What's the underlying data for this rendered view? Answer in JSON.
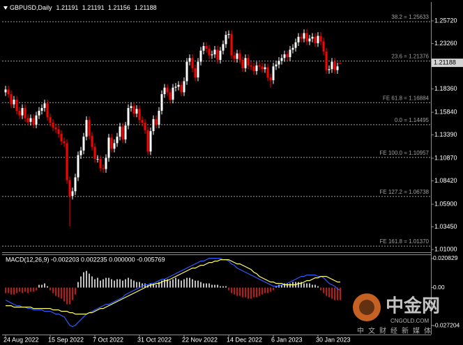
{
  "chart_data": [
    {
      "type": "candlestick",
      "title": "GBPUSD,Daily",
      "categories": [
        "24 Aug 2022",
        null,
        null,
        null,
        null,
        null,
        null,
        null,
        null,
        null,
        null,
        null,
        null,
        null,
        null,
        null,
        "15 Sep 2022",
        null,
        null,
        null,
        null,
        null,
        null,
        null,
        null,
        null,
        null,
        null,
        null,
        null,
        null,
        null,
        "7 Oct 2022",
        null,
        null,
        null,
        null,
        null,
        null,
        null,
        null,
        null,
        null,
        null,
        null,
        null,
        null,
        null,
        "31 Oct 2022",
        null,
        null,
        null,
        null,
        null,
        null,
        null,
        null,
        null,
        null,
        null,
        null,
        null,
        null,
        null,
        "22 Nov 2022",
        null,
        null,
        null,
        null,
        null,
        null,
        null,
        null,
        null,
        null,
        null,
        null,
        null,
        null,
        null,
        "14 Dec 2022",
        null,
        null,
        null,
        null,
        null,
        null,
        null,
        null,
        null,
        null,
        null,
        null,
        null,
        null,
        null,
        "6 Jan 2023",
        null,
        null,
        null,
        null,
        null,
        null,
        null,
        null,
        null,
        null,
        null,
        null,
        null,
        null,
        null,
        "30 Jan 2023",
        null,
        null,
        null,
        null,
        null,
        null,
        null,
        null
      ],
      "open": [
        1.18,
        1.183,
        1.178,
        1.167,
        1.172,
        1.16,
        1.155,
        1.163,
        1.152,
        1.148,
        1.152,
        1.145,
        1.155,
        1.16,
        1.163,
        1.168,
        1.153,
        1.147,
        1.142,
        1.14,
        1.135,
        1.127,
        1.125,
        1.085,
        1.068,
        1.073,
        1.088,
        1.112,
        1.117,
        1.132,
        1.15,
        1.133,
        1.121,
        1.108,
        1.108,
        1.098,
        1.097,
        1.109,
        1.131,
        1.119,
        1.125,
        1.132,
        1.143,
        1.129,
        1.144,
        1.163,
        1.165,
        1.157,
        1.162,
        1.15,
        1.147,
        1.139,
        1.116,
        1.138,
        1.151,
        1.145,
        1.16,
        1.178,
        1.185,
        1.18,
        1.172,
        1.185,
        1.186,
        1.188,
        1.18,
        1.192,
        1.213,
        1.217,
        1.206,
        1.196,
        1.213,
        1.225,
        1.23,
        1.227,
        1.22,
        1.221,
        1.226,
        1.215,
        1.225,
        1.232,
        1.242,
        1.243,
        1.22,
        1.216,
        1.222,
        1.215,
        1.206,
        1.217,
        1.209,
        1.208,
        1.203,
        1.209,
        1.208,
        1.205,
        1.207,
        1.196,
        1.193,
        1.208,
        1.21,
        1.214,
        1.217,
        1.221,
        1.218,
        1.226,
        1.228,
        1.234,
        1.24,
        1.238,
        1.244,
        1.235,
        1.238,
        1.24,
        1.233,
        1.241,
        1.235,
        1.224,
        1.204,
        1.205,
        1.213,
        1.204,
        1.21191
      ],
      "high": [
        1.187,
        1.187,
        1.182,
        1.176,
        1.176,
        1.164,
        1.167,
        1.167,
        1.156,
        1.156,
        1.156,
        1.159,
        1.164,
        1.167,
        1.172,
        1.172,
        1.157,
        1.151,
        1.146,
        1.144,
        1.139,
        1.131,
        1.129,
        1.089,
        1.077,
        1.092,
        1.116,
        1.121,
        1.136,
        1.154,
        1.154,
        1.137,
        1.125,
        1.112,
        1.112,
        1.102,
        1.113,
        1.135,
        1.135,
        1.129,
        1.136,
        1.147,
        1.147,
        1.148,
        1.167,
        1.169,
        1.169,
        1.166,
        1.166,
        1.154,
        1.151,
        1.143,
        1.142,
        1.155,
        1.155,
        1.164,
        1.182,
        1.189,
        1.189,
        1.184,
        1.189,
        1.19,
        1.192,
        1.192,
        1.196,
        1.217,
        1.221,
        1.221,
        1.21,
        1.217,
        1.229,
        1.234,
        1.234,
        1.231,
        1.225,
        1.23,
        1.23,
        1.229,
        1.236,
        1.246,
        1.247,
        1.247,
        1.224,
        1.226,
        1.226,
        1.219,
        1.221,
        1.221,
        1.213,
        1.212,
        1.213,
        1.213,
        1.212,
        1.211,
        1.211,
        1.2,
        1.212,
        1.214,
        1.218,
        1.221,
        1.225,
        1.225,
        1.23,
        1.232,
        1.238,
        1.244,
        1.244,
        1.248,
        1.248,
        1.242,
        1.244,
        1.244,
        1.245,
        1.245,
        1.239,
        1.228,
        1.209,
        1.217,
        1.217,
        1.212,
        1.21191
      ],
      "low": [
        1.176,
        1.174,
        1.163,
        1.163,
        1.156,
        1.151,
        1.151,
        1.148,
        1.144,
        1.144,
        1.141,
        1.141,
        1.151,
        1.156,
        1.159,
        1.149,
        1.143,
        1.138,
        1.136,
        1.131,
        1.123,
        1.121,
        1.081,
        1.035,
        1.064,
        1.069,
        1.084,
        1.108,
        1.113,
        1.128,
        1.129,
        1.117,
        1.104,
        1.104,
        1.094,
        1.093,
        1.093,
        1.105,
        1.115,
        1.115,
        1.121,
        1.128,
        1.125,
        1.125,
        1.14,
        1.159,
        1.153,
        1.153,
        1.146,
        1.143,
        1.135,
        1.112,
        1.112,
        1.134,
        1.141,
        1.141,
        1.156,
        1.174,
        1.176,
        1.168,
        1.168,
        1.181,
        1.182,
        1.176,
        1.176,
        1.188,
        1.209,
        1.202,
        1.192,
        1.192,
        1.209,
        1.221,
        1.223,
        1.216,
        1.216,
        1.217,
        1.211,
        1.211,
        1.221,
        1.228,
        1.238,
        1.216,
        1.212,
        1.212,
        1.211,
        1.202,
        1.202,
        1.205,
        1.204,
        1.199,
        1.199,
        1.204,
        1.201,
        1.201,
        1.192,
        1.185,
        1.189,
        1.204,
        1.206,
        1.21,
        1.213,
        1.214,
        1.214,
        1.222,
        1.224,
        1.23,
        1.234,
        1.234,
        1.231,
        1.231,
        1.234,
        1.229,
        1.229,
        1.231,
        1.22,
        1.2,
        1.2,
        1.201,
        1.2,
        1.2,
        1.21156
      ],
      "close": [
        1.183,
        1.178,
        1.167,
        1.172,
        1.16,
        1.155,
        1.163,
        1.152,
        1.148,
        1.152,
        1.145,
        1.155,
        1.16,
        1.163,
        1.168,
        1.153,
        1.147,
        1.142,
        1.14,
        1.135,
        1.127,
        1.125,
        1.085,
        1.068,
        1.073,
        1.088,
        1.112,
        1.117,
        1.132,
        1.15,
        1.133,
        1.121,
        1.108,
        1.108,
        1.098,
        1.097,
        1.109,
        1.131,
        1.119,
        1.125,
        1.132,
        1.143,
        1.129,
        1.144,
        1.163,
        1.165,
        1.157,
        1.162,
        1.15,
        1.147,
        1.139,
        1.116,
        1.138,
        1.151,
        1.145,
        1.16,
        1.178,
        1.185,
        1.18,
        1.172,
        1.185,
        1.186,
        1.188,
        1.18,
        1.192,
        1.213,
        1.217,
        1.206,
        1.196,
        1.213,
        1.225,
        1.23,
        1.227,
        1.22,
        1.221,
        1.226,
        1.215,
        1.225,
        1.232,
        1.242,
        1.243,
        1.22,
        1.216,
        1.222,
        1.215,
        1.206,
        1.217,
        1.209,
        1.208,
        1.203,
        1.209,
        1.208,
        1.205,
        1.207,
        1.196,
        1.193,
        1.208,
        1.21,
        1.214,
        1.217,
        1.221,
        1.218,
        1.226,
        1.228,
        1.234,
        1.24,
        1.238,
        1.244,
        1.235,
        1.238,
        1.24,
        1.233,
        1.241,
        1.235,
        1.224,
        1.204,
        1.205,
        1.213,
        1.204,
        1.208,
        1.21188
      ],
      "up_color": "#ffffff",
      "down_color": "#ff0000",
      "ylim": [
        1.007,
        1.276
      ],
      "yticks": [
        {
          "value": 1.2572,
          "label": "1.25720"
        },
        {
          "value": 1.2326,
          "label": "1.23260"
        },
        {
          "value": 1.1836,
          "label": "1.18360"
        },
        {
          "value": 1.1584,
          "label": "1.15840"
        },
        {
          "value": 1.1339,
          "label": "1.13390"
        },
        {
          "value": 1.1087,
          "label": "1.10870"
        },
        {
          "value": 1.0842,
          "label": "1.08420"
        },
        {
          "value": 1.059,
          "label": "1.05900"
        },
        {
          "value": 1.0345,
          "label": "1.03450"
        },
        {
          "value": 1.01,
          "label": "1.01000"
        }
      ],
      "levels": [
        {
          "label": "38.2 = 1.25633",
          "value": 1.25633
        },
        {
          "label": "23.6 = 1.21376",
          "value": 1.21376
        },
        {
          "label": "FE 61.8 = 1.16884",
          "value": 1.16884
        },
        {
          "label": "0.0 = 1.14495",
          "value": 1.14495
        },
        {
          "label": "FE 100.0 = 1.10957",
          "value": 1.10957
        },
        {
          "label": "FE 127.2 = 1.06738",
          "value": 1.06738
        },
        {
          "label": "FE 161.8 = 1.01370",
          "value": 1.0137
        }
      ],
      "level_color": "#a0a0a0"
    },
    {
      "type": "macd",
      "title": "MACD(12,26,9) -0.002203 0.002235 0.000000 -0.005769",
      "histogram": {
        "up_color": "#ffffff",
        "down_color": "#ff2020",
        "values": [
          -0.004,
          -0.004,
          -0.005,
          -0.005,
          -0.004,
          -0.003,
          -0.004,
          -0.003,
          -0.004,
          -0.003,
          -0.003,
          -0.002,
          0.002,
          0.002,
          0.003,
          0.001,
          -0.002,
          -0.004,
          -0.006,
          -0.007,
          -0.008,
          -0.01,
          -0.012,
          -0.012,
          -0.009,
          -0.005,
          0.004,
          0.008,
          0.011,
          0.012,
          0.01,
          0.008,
          0.006,
          0.007,
          0.005,
          0.006,
          0.007,
          0.007,
          0.006,
          0.005,
          0.006,
          0.006,
          0.005,
          0.006,
          0.007,
          0.006,
          0.005,
          0.004,
          0.004,
          0.003,
          0.003,
          0.002,
          0.003,
          0.003,
          0.002,
          0.004,
          0.005,
          0.006,
          0.006,
          0.005,
          0.006,
          0.007,
          0.006,
          0.005,
          0.006,
          0.007,
          0.007,
          0.006,
          0.005,
          0.005,
          0.004,
          0.003,
          0.003,
          0.003,
          0.002,
          0.002,
          0.002,
          0.001,
          0.001,
          0.001,
          -0.002,
          -0.004,
          -0.005,
          -0.006,
          -0.006,
          -0.007,
          -0.007,
          -0.008,
          -0.008,
          -0.007,
          -0.007,
          -0.006,
          -0.005,
          -0.004,
          -0.004,
          -0.003,
          -0.002,
          0.001,
          0.002,
          0.002,
          0.003,
          0.003,
          0.003,
          0.004,
          0.004,
          0.004,
          0.004,
          0.003,
          0.003,
          0.003,
          0.002,
          0.002,
          0.001,
          -0.002,
          -0.004,
          -0.006,
          -0.007,
          -0.008,
          -0.009,
          -0.009,
          -0.009
        ]
      },
      "series": [
        {
          "color": "#2f5cff",
          "values": [
            -0.009,
            -0.01,
            -0.011,
            -0.012,
            -0.013,
            -0.013,
            -0.014,
            -0.014,
            -0.015,
            -0.015,
            -0.016,
            -0.016,
            -0.016,
            -0.016,
            -0.017,
            -0.017,
            -0.017,
            -0.018,
            -0.019,
            -0.019,
            -0.02,
            -0.021,
            -0.024,
            -0.027,
            -0.028,
            -0.027,
            -0.025,
            -0.023,
            -0.021,
            -0.019,
            -0.018,
            -0.017,
            -0.016,
            -0.015,
            -0.014,
            -0.013,
            -0.012,
            -0.012,
            -0.011,
            -0.01,
            -0.009,
            -0.008,
            -0.007,
            -0.005,
            -0.004,
            -0.003,
            -0.002,
            -0.001,
            0.0,
            0.001,
            0.002,
            0.002,
            0.003,
            0.003,
            0.004,
            0.005,
            0.006,
            0.006,
            0.007,
            0.008,
            0.009,
            0.01,
            0.011,
            0.012,
            0.013,
            0.014,
            0.015,
            0.016,
            0.017,
            0.018,
            0.019,
            0.019,
            0.02,
            0.021,
            0.021,
            0.021,
            0.021,
            0.021,
            0.02,
            0.02,
            0.019,
            0.017,
            0.016,
            0.014,
            0.013,
            0.012,
            0.011,
            0.01,
            0.009,
            0.008,
            0.007,
            0.006,
            0.005,
            0.004,
            0.003,
            0.002,
            0.001,
            0.001,
            0.001,
            0.002,
            0.002,
            0.003,
            0.004,
            0.005,
            0.006,
            0.007,
            0.008,
            0.008,
            0.009,
            0.009,
            0.009,
            0.009,
            0.008,
            0.008,
            0.007,
            0.005,
            0.003,
            0.002,
            0.001,
            -0.001,
            -0.002
          ]
        },
        {
          "color": "#ffff70",
          "values": [
            -0.013,
            -0.013,
            -0.013,
            -0.014,
            -0.014,
            -0.014,
            -0.014,
            -0.014,
            -0.014,
            -0.014,
            -0.015,
            -0.015,
            -0.015,
            -0.015,
            -0.015,
            -0.015,
            -0.015,
            -0.016,
            -0.016,
            -0.016,
            -0.017,
            -0.017,
            -0.017,
            -0.018,
            -0.018,
            -0.019,
            -0.019,
            -0.019,
            -0.019,
            -0.019,
            -0.018,
            -0.018,
            -0.017,
            -0.016,
            -0.015,
            -0.015,
            -0.014,
            -0.013,
            -0.012,
            -0.011,
            -0.01,
            -0.009,
            -0.008,
            -0.007,
            -0.006,
            -0.005,
            -0.004,
            -0.003,
            -0.002,
            -0.001,
            0.0,
            0.001,
            0.002,
            0.002,
            0.003,
            0.003,
            0.004,
            0.005,
            0.005,
            0.006,
            0.007,
            0.008,
            0.009,
            0.01,
            0.011,
            0.012,
            0.013,
            0.014,
            0.014,
            0.015,
            0.016,
            0.016,
            0.017,
            0.018,
            0.018,
            0.019,
            0.019,
            0.02,
            0.02,
            0.02,
            0.02,
            0.019,
            0.018,
            0.017,
            0.017,
            0.016,
            0.015,
            0.014,
            0.013,
            0.011,
            0.01,
            0.008,
            0.007,
            0.006,
            0.005,
            0.004,
            0.004,
            0.003,
            0.003,
            0.003,
            0.002,
            0.002,
            0.002,
            0.002,
            0.002,
            0.003,
            0.003,
            0.004,
            0.005,
            0.005,
            0.006,
            0.007,
            0.007,
            0.008,
            0.008,
            0.008,
            0.007,
            0.006,
            0.005,
            0.004,
            0.004
          ]
        }
      ],
      "ylim": [
        -0.0337,
        0.0233
      ],
      "yticks": [
        0.020829,
        {
          "value": 0,
          "label": "0.00"
        },
        -0.027204
      ]
    }
  ],
  "watermark": {
    "brand": "中金网",
    "site": "CNGOLD.COM",
    "slogan": "中文财经新媒体"
  }
}
